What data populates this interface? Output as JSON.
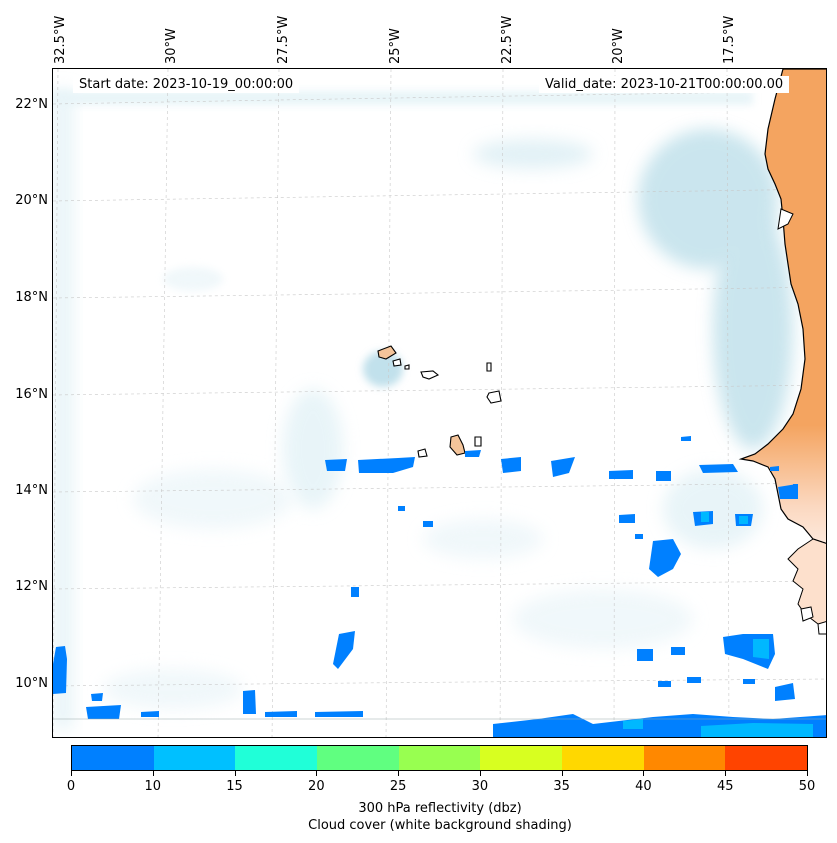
{
  "map": {
    "start_date": "Start date: 2023-10-19_00:00:00",
    "valid_date": "Valid_date: 2023-10-21T00:00:00.00",
    "lat_labels": [
      "22°N",
      "20°N",
      "18°N",
      "16°N",
      "14°N",
      "12°N",
      "10°N"
    ],
    "lon_labels": [
      "32.5°W",
      "30°W",
      "27.5°W",
      "25°W",
      "22.5°W",
      "20°W",
      "17.5°W"
    ],
    "land_color": "#f4a460",
    "cloud_color": "#add8e6",
    "reflectivity_color": "#0080ff"
  },
  "colorbar": {
    "ticks": [
      "0",
      "10",
      "15",
      "20",
      "25",
      "30",
      "35",
      "40",
      "45",
      "50"
    ],
    "colors": [
      "#0080ff",
      "#00c0ff",
      "#20ffd8",
      "#60ff80",
      "#98ff50",
      "#d8ff20",
      "#ffd800",
      "#ff8800",
      "#ff4400"
    ],
    "label": "300 hPa reflectivity (dbz)",
    "sublabel": "Cloud cover (white background shading)"
  }
}
